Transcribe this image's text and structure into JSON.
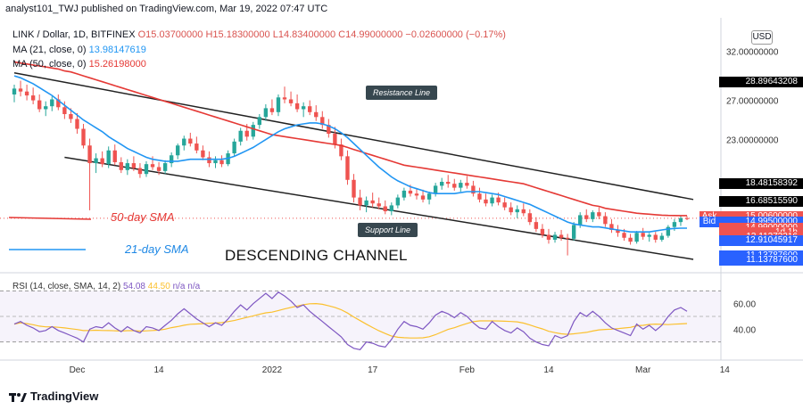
{
  "header": {
    "published": "analyst101_TWJ published on TradingView.com, Mar 19, 2022 07:47 UTC"
  },
  "legend": {
    "symbol": "LINK / Dollar, 1D, BITFINEX",
    "open": "O15.03700000",
    "high": "H15.18300000",
    "low": "L14.83400000",
    "close": "C14.99000000",
    "change": "−0.02600000 (−0.17%)",
    "ma1_label": "MA (21, close, 0)",
    "ma1_value": "13.98147619",
    "ma2_label": "MA (50, close, 0)",
    "ma2_value": "15.26198000"
  },
  "rsi_legend": {
    "label": "RSI (14, close, SMA, 14, 2)",
    "v1": "54.08",
    "v2": "44.50",
    "na": "n/a  n/a"
  },
  "currency": "USD",
  "price_axis": {
    "ticks": [
      "32.00000000",
      "27.00000000",
      "23.00000000"
    ],
    "tags": [
      {
        "text": "28.89643208",
        "bg": "#000000",
        "fg": "#ffffff",
        "price": 28.9
      },
      {
        "text": "18.48158392",
        "bg": "#000000",
        "fg": "#ffffff",
        "price": 18.48
      },
      {
        "text": "16.68515590",
        "bg": "#000000",
        "fg": "#ffffff",
        "price": 16.69
      },
      {
        "text": "15.00600000",
        "bg": "#ef5350",
        "fg": "#ffffff",
        "price": 15.2,
        "label": "Ask"
      },
      {
        "text": "14.99500000",
        "bg": "#2962ff",
        "fg": "#ffffff",
        "price": 14.6,
        "label": "Bid"
      },
      {
        "text": "14.99000000",
        "bg": "#ef5350",
        "fg": "#ffffff",
        "price": 14.0
      },
      {
        "text": "1d 1h",
        "bg": "#ef5350",
        "fg": "#ffffff",
        "price": 13.55
      },
      {
        "text": "13.11273216",
        "bg": "#ef5350",
        "fg": "#ffffff",
        "price": 13.1
      },
      {
        "text": "12.91045917",
        "bg": "#2962ff",
        "fg": "#ffffff",
        "price": 12.7
      },
      {
        "text": "11.13787600",
        "bg": "#2962ff",
        "fg": "#ffffff",
        "price": 11.14
      },
      {
        "text": "11.13787600",
        "bg": "#2962ff",
        "fg": "#ffffff",
        "price": 10.75
      }
    ]
  },
  "rsi_axis": {
    "ticks": [
      "60.00",
      "40.00"
    ]
  },
  "time_axis": [
    "Dec",
    "14",
    "2022",
    "17",
    "Feb",
    "14",
    "Mar",
    "14"
  ],
  "annotations": {
    "resistance": "Resistance Line",
    "support": "Support Line",
    "sma50": "50-day SMA",
    "sma21": "21-day SMA",
    "channel": "DESCENDING CHANNEL"
  },
  "footer": {
    "brand": "TradingView"
  },
  "colors": {
    "up": "#26a69a",
    "down": "#ef5350",
    "ma21": "#2196f3",
    "ma50": "#e53935",
    "rsi": "#7e57c2",
    "rsi_sma": "#fbc02d"
  },
  "chart_data": {
    "type": "candlestick",
    "title": "LINK / Dollar, 1D, BITFINEX",
    "ylim": [
      9.8,
      34.5
    ],
    "rsi_ylim": [
      20,
      80
    ],
    "rsi_band": [
      30,
      70
    ],
    "x_ticks": [
      {
        "label": "Dec",
        "index": 10
      },
      {
        "label": "14",
        "index": 23
      },
      {
        "label": "2022",
        "index": 41
      },
      {
        "label": "17",
        "index": 57
      },
      {
        "label": "Feb",
        "index": 72
      },
      {
        "label": "14",
        "index": 85
      },
      {
        "label": "Mar",
        "index": 100
      },
      {
        "label": "14",
        "index": 113
      }
    ],
    "candles": [
      [
        27.6,
        28.6,
        26.8,
        28.2
      ],
      [
        28.2,
        29.0,
        27.4,
        27.9
      ],
      [
        27.9,
        28.6,
        27.0,
        27.5
      ],
      [
        27.5,
        28.3,
        26.6,
        27.0
      ],
      [
        27.0,
        27.6,
        25.8,
        26.1
      ],
      [
        26.1,
        26.9,
        25.4,
        26.4
      ],
      [
        26.4,
        27.4,
        25.9,
        27.1
      ],
      [
        27.1,
        27.6,
        26.0,
        26.3
      ],
      [
        26.3,
        26.9,
        25.1,
        25.6
      ],
      [
        25.6,
        26.2,
        24.7,
        25.1
      ],
      [
        25.1,
        25.7,
        23.6,
        24.1
      ],
      [
        24.1,
        24.6,
        22.1,
        22.4
      ],
      [
        22.4,
        23.1,
        15.8,
        20.6
      ],
      [
        20.6,
        21.6,
        19.6,
        21.1
      ],
      [
        21.1,
        21.8,
        20.2,
        20.5
      ],
      [
        20.5,
        22.3,
        20.1,
        21.9
      ],
      [
        21.9,
        22.5,
        20.4,
        20.7
      ],
      [
        20.7,
        21.2,
        19.6,
        19.9
      ],
      [
        19.9,
        21.0,
        19.4,
        20.6
      ],
      [
        20.6,
        21.3,
        19.8,
        20.1
      ],
      [
        20.1,
        20.6,
        19.1,
        19.5
      ],
      [
        19.5,
        20.8,
        19.2,
        20.5
      ],
      [
        20.5,
        21.3,
        19.9,
        20.2
      ],
      [
        20.2,
        20.7,
        19.4,
        19.8
      ],
      [
        19.8,
        20.9,
        19.5,
        20.6
      ],
      [
        20.6,
        21.7,
        20.2,
        21.4
      ],
      [
        21.4,
        22.6,
        21.0,
        22.4
      ],
      [
        22.4,
        23.4,
        21.9,
        23.1
      ],
      [
        23.1,
        23.7,
        22.3,
        22.6
      ],
      [
        22.6,
        23.3,
        21.6,
        21.9
      ],
      [
        21.9,
        22.4,
        20.9,
        21.2
      ],
      [
        21.2,
        21.8,
        20.2,
        20.6
      ],
      [
        20.6,
        21.3,
        20.1,
        20.9
      ],
      [
        20.9,
        21.4,
        20.2,
        20.5
      ],
      [
        20.5,
        21.9,
        20.3,
        21.6
      ],
      [
        21.6,
        23.1,
        21.3,
        22.8
      ],
      [
        22.8,
        24.2,
        22.4,
        23.9
      ],
      [
        23.9,
        24.6,
        22.9,
        23.3
      ],
      [
        23.3,
        24.8,
        23.0,
        24.5
      ],
      [
        24.5,
        25.6,
        24.1,
        25.3
      ],
      [
        25.3,
        26.6,
        24.9,
        26.2
      ],
      [
        26.2,
        27.1,
        25.5,
        25.8
      ],
      [
        25.8,
        27.6,
        25.4,
        27.3
      ],
      [
        27.3,
        28.4,
        26.7,
        27.1
      ],
      [
        27.1,
        27.9,
        26.4,
        26.7
      ],
      [
        26.7,
        27.6,
        25.8,
        26.1
      ],
      [
        26.1,
        26.8,
        25.3,
        26.4
      ],
      [
        26.4,
        27.0,
        25.5,
        25.8
      ],
      [
        25.8,
        26.5,
        24.9,
        25.3
      ],
      [
        25.3,
        25.9,
        24.1,
        24.5
      ],
      [
        24.5,
        25.1,
        23.2,
        23.6
      ],
      [
        23.6,
        24.3,
        22.1,
        22.5
      ],
      [
        22.5,
        23.1,
        20.9,
        21.3
      ],
      [
        21.3,
        21.9,
        18.4,
        18.9
      ],
      [
        18.9,
        19.5,
        16.6,
        17.1
      ],
      [
        17.1,
        17.9,
        15.8,
        16.3
      ],
      [
        16.3,
        17.2,
        15.6,
        16.8
      ],
      [
        16.8,
        17.6,
        16.1,
        16.5
      ],
      [
        16.5,
        17.1,
        15.9,
        16.2
      ],
      [
        16.2,
        16.8,
        15.4,
        15.7
      ],
      [
        15.7,
        16.6,
        15.3,
        16.3
      ],
      [
        16.3,
        17.4,
        16.0,
        17.1
      ],
      [
        17.1,
        18.1,
        16.8,
        17.8
      ],
      [
        17.8,
        18.4,
        17.2,
        17.5
      ],
      [
        17.5,
        18.0,
        16.9,
        17.3
      ],
      [
        17.3,
        17.9,
        16.6,
        16.9
      ],
      [
        16.9,
        17.7,
        16.4,
        17.5
      ],
      [
        17.5,
        18.6,
        17.2,
        18.3
      ],
      [
        18.3,
        19.1,
        17.9,
        18.7
      ],
      [
        18.7,
        19.4,
        18.1,
        18.5
      ],
      [
        18.5,
        19.0,
        17.8,
        18.1
      ],
      [
        18.1,
        18.9,
        17.7,
        18.6
      ],
      [
        18.6,
        19.3,
        18.0,
        18.3
      ],
      [
        18.3,
        18.8,
        17.2,
        17.5
      ],
      [
        17.5,
        18.1,
        16.6,
        16.9
      ],
      [
        16.9,
        17.5,
        16.2,
        16.5
      ],
      [
        16.5,
        17.4,
        16.2,
        17.1
      ],
      [
        17.1,
        17.6,
        16.3,
        16.6
      ],
      [
        16.6,
        17.1,
        15.8,
        16.1
      ],
      [
        16.1,
        16.6,
        15.3,
        15.6
      ],
      [
        15.6,
        16.3,
        15.0,
        15.9
      ],
      [
        15.9,
        16.5,
        15.2,
        15.5
      ],
      [
        15.5,
        15.9,
        14.3,
        14.6
      ],
      [
        14.6,
        15.1,
        13.6,
        13.9
      ],
      [
        13.9,
        14.4,
        13.0,
        13.3
      ],
      [
        13.3,
        13.9,
        12.4,
        12.8
      ],
      [
        12.8,
        13.6,
        12.5,
        13.3
      ],
      [
        13.3,
        13.8,
        12.7,
        13.0
      ],
      [
        13.0,
        13.4,
        11.2,
        12.9
      ],
      [
        12.9,
        14.6,
        12.7,
        14.3
      ],
      [
        14.3,
        15.6,
        14.0,
        15.3
      ],
      [
        15.3,
        15.9,
        14.6,
        14.9
      ],
      [
        14.9,
        15.8,
        14.6,
        15.6
      ],
      [
        15.6,
        16.1,
        14.9,
        15.2
      ],
      [
        15.2,
        15.6,
        14.1,
        14.4
      ],
      [
        14.4,
        14.9,
        13.5,
        13.8
      ],
      [
        13.8,
        14.3,
        13.1,
        13.5
      ],
      [
        13.5,
        13.9,
        12.7,
        13.0
      ],
      [
        13.0,
        13.4,
        12.3,
        12.6
      ],
      [
        12.6,
        13.7,
        12.4,
        13.5
      ],
      [
        13.5,
        14.0,
        12.8,
        13.1
      ],
      [
        13.1,
        13.5,
        12.6,
        13.3
      ],
      [
        13.3,
        13.6,
        12.5,
        12.8
      ],
      [
        12.8,
        13.5,
        12.6,
        13.2
      ],
      [
        13.2,
        14.3,
        13.0,
        14.1
      ],
      [
        14.1,
        14.9,
        13.7,
        14.6
      ],
      [
        14.6,
        15.2,
        14.2,
        15.0
      ],
      [
        15.0,
        15.2,
        14.8,
        14.99
      ]
    ],
    "ma21": [
      29.5,
      29.3,
      29.0,
      28.7,
      28.3,
      27.9,
      27.5,
      27.0,
      26.5,
      26.0,
      25.5,
      25.0,
      24.6,
      24.2,
      23.8,
      23.3,
      22.9,
      22.5,
      22.1,
      21.8,
      21.5,
      21.2,
      21.0,
      20.9,
      20.8,
      20.8,
      20.8,
      20.9,
      21.0,
      21.0,
      21.0,
      21.0,
      21.0,
      21.0,
      21.1,
      21.3,
      21.6,
      21.9,
      22.2,
      22.6,
      23.0,
      23.4,
      23.8,
      24.1,
      24.3,
      24.5,
      24.6,
      24.7,
      24.7,
      24.6,
      24.4,
      24.1,
      23.7,
      23.2,
      22.6,
      22.0,
      21.4,
      20.8,
      20.2,
      19.7,
      19.2,
      18.8,
      18.5,
      18.2,
      18.0,
      17.8,
      17.6,
      17.5,
      17.5,
      17.5,
      17.5,
      17.6,
      17.7,
      17.7,
      17.7,
      17.6,
      17.5,
      17.4,
      17.2,
      17.0,
      16.8,
      16.6,
      16.4,
      16.1,
      15.8,
      15.5,
      15.2,
      14.9,
      14.6,
      14.4,
      14.3,
      14.2,
      14.1,
      14.1,
      14.0,
      13.9,
      13.8,
      13.7,
      13.6,
      13.6,
      13.6,
      13.6,
      13.7,
      13.8,
      13.9,
      13.95,
      13.98,
      13.98
    ],
    "ma50": [
      30.9,
      30.8,
      30.7,
      30.6,
      30.5,
      30.4,
      30.3,
      30.2,
      30.0,
      29.9,
      29.7,
      29.5,
      29.3,
      29.1,
      28.9,
      28.7,
      28.5,
      28.3,
      28.1,
      27.9,
      27.7,
      27.5,
      27.3,
      27.1,
      26.9,
      26.7,
      26.5,
      26.3,
      26.1,
      25.9,
      25.7,
      25.5,
      25.3,
      25.1,
      24.9,
      24.7,
      24.5,
      24.3,
      24.1,
      23.9,
      23.7,
      23.5,
      23.4,
      23.3,
      23.2,
      23.1,
      23.0,
      22.9,
      22.8,
      22.7,
      22.6,
      22.5,
      22.4,
      22.2,
      22.0,
      21.8,
      21.6,
      21.4,
      21.2,
      21.0,
      20.8,
      20.6,
      20.4,
      20.3,
      20.2,
      20.1,
      20.0,
      19.9,
      19.8,
      19.7,
      19.6,
      19.5,
      19.4,
      19.3,
      19.2,
      19.1,
      19.0,
      18.9,
      18.8,
      18.7,
      18.6,
      18.5,
      18.3,
      18.1,
      17.9,
      17.7,
      17.5,
      17.3,
      17.1,
      16.9,
      16.7,
      16.5,
      16.3,
      16.2,
      16.0,
      15.9,
      15.8,
      15.7,
      15.6,
      15.5,
      15.45,
      15.4,
      15.35,
      15.3,
      15.28,
      15.27,
      15.26,
      15.26
    ],
    "rsi": [
      44,
      46,
      43,
      41,
      38,
      39,
      42,
      39,
      37,
      35,
      33,
      30,
      40,
      42,
      41,
      45,
      41,
      38,
      42,
      39,
      37,
      42,
      41,
      39,
      43,
      47,
      52,
      56,
      52,
      48,
      45,
      42,
      45,
      43,
      48,
      54,
      59,
      55,
      60,
      64,
      68,
      64,
      69,
      66,
      62,
      57,
      59,
      54,
      50,
      46,
      42,
      38,
      34,
      28,
      25,
      24,
      30,
      29,
      27,
      26,
      32,
      40,
      46,
      43,
      42,
      40,
      45,
      51,
      54,
      52,
      49,
      53,
      50,
      45,
      41,
      40,
      46,
      42,
      39,
      37,
      41,
      38,
      33,
      30,
      28,
      27,
      35,
      33,
      35,
      46,
      53,
      50,
      54,
      50,
      45,
      41,
      39,
      37,
      35,
      44,
      40,
      43,
      39,
      43,
      50,
      55,
      57,
      54
    ],
    "resistance_line": [
      [
        0,
        29.8
      ],
      [
        108,
        16.9
      ]
    ],
    "support_line": [
      [
        8,
        21.2
      ],
      [
        108,
        10.8
      ]
    ]
  }
}
